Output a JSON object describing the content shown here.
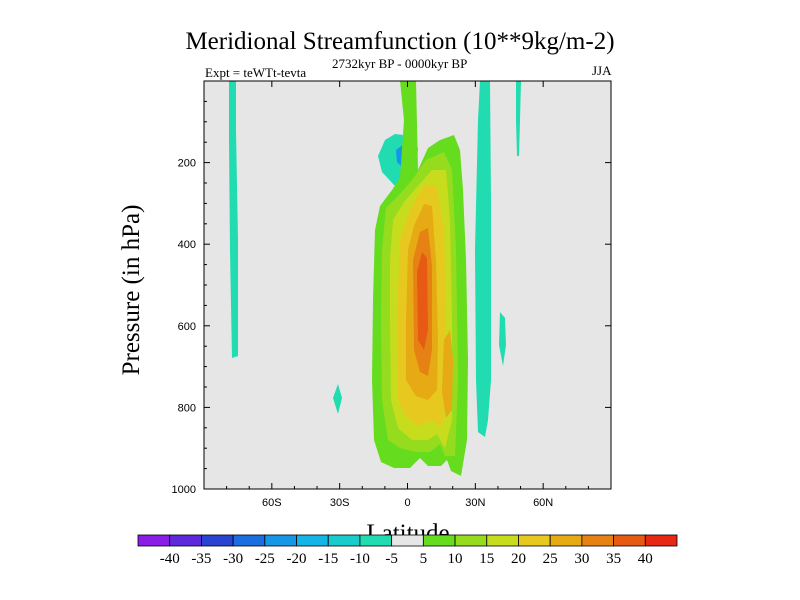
{
  "chart_data": {
    "type": "contour",
    "title": "Meridional Streamfunction (10**9kg/m-2)",
    "subtitle_left": "Expt = teWTt-tevta",
    "subtitle_center": "2732kyr BP - 0000kyr BP",
    "subtitle_right": "JJA",
    "xlabel": "Latitude",
    "ylabel": "Pressure (in hPa)",
    "xlim": [
      -90,
      90
    ],
    "ylim": [
      1000,
      0
    ],
    "x_ticks": [
      {
        "value": -60,
        "label": "60S"
      },
      {
        "value": -30,
        "label": "30S"
      },
      {
        "value": 0,
        "label": "0"
      },
      {
        "value": 30,
        "label": "30N"
      },
      {
        "value": 60,
        "label": "60N"
      }
    ],
    "y_ticks": [
      {
        "value": 200,
        "label": "200"
      },
      {
        "value": 400,
        "label": "400"
      },
      {
        "value": 600,
        "label": "600"
      },
      {
        "value": 800,
        "label": "800"
      },
      {
        "value": 1000,
        "label": "1000"
      }
    ],
    "colorbar": {
      "labels": [
        "-40",
        "-35",
        "-30",
        "-25",
        "-20",
        "-15",
        "-10",
        "-5",
        "5",
        "10",
        "15",
        "20",
        "25",
        "30",
        "35",
        "40"
      ],
      "colors": [
        "#8a1ee6",
        "#5e28dc",
        "#2a44d2",
        "#1a6ee0",
        "#1596e6",
        "#14b4e6",
        "#18cccc",
        "#20dcb0",
        "#e6e6e6",
        "#66dc1e",
        "#96dc1e",
        "#c8dc1e",
        "#e6c81e",
        "#e6aa14",
        "#e68214",
        "#e65a14",
        "#e62814"
      ]
    },
    "contour_levels_shown": [
      {
        "level": "-5",
        "regions": "thin bands near 75S, 30S, 36N (to 870 hPa), 52N and 100 hPa column at 50N"
      },
      {
        "level": "-15",
        "regions": "upper tropical cell centred near 3S, 200 hPa"
      },
      {
        "level": "5",
        "regions": "main positive cell from 12S to 26N, 140-970 hPa"
      },
      {
        "level": "10-30",
        "regions": "nested core, maximum > 30 near 5N, 400-650 hPa"
      }
    ]
  }
}
